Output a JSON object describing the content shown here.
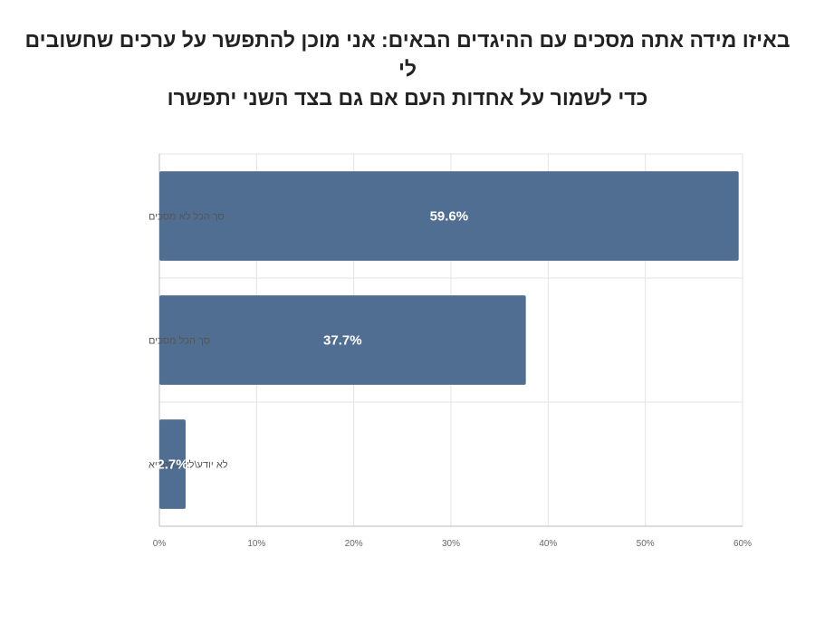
{
  "title_lines": [
    "באיזו מידה אתה מסכים עם ההיגדים הבאים: אני מוכן להתפשר על ערכים שחשובים לי",
    "כדי לשמור על אחדות העם אם גם בצד השני יתפשרו"
  ],
  "colors": {
    "bar": "#506e91",
    "grid": "#e3e3e3",
    "axis": "#bbbbbb"
  },
  "chart_data": {
    "type": "bar",
    "orientation": "horizontal",
    "categories": [
      "סך הכל לא מסכים",
      "סך הכל מסכים",
      "לא יודע\\לא להקריא"
    ],
    "values": [
      59.6,
      37.7,
      2.7
    ],
    "data_labels": [
      "59.6%",
      "37.7%",
      "2.7%"
    ],
    "xlim": [
      0,
      60
    ],
    "x_ticks": [
      0,
      10,
      20,
      30,
      40,
      50,
      60
    ],
    "x_tick_labels": [
      "0%",
      "10%",
      "20%",
      "30%",
      "40%",
      "50%",
      "60%"
    ],
    "grid": true,
    "legend": "none",
    "xlabel": "",
    "ylabel": ""
  }
}
